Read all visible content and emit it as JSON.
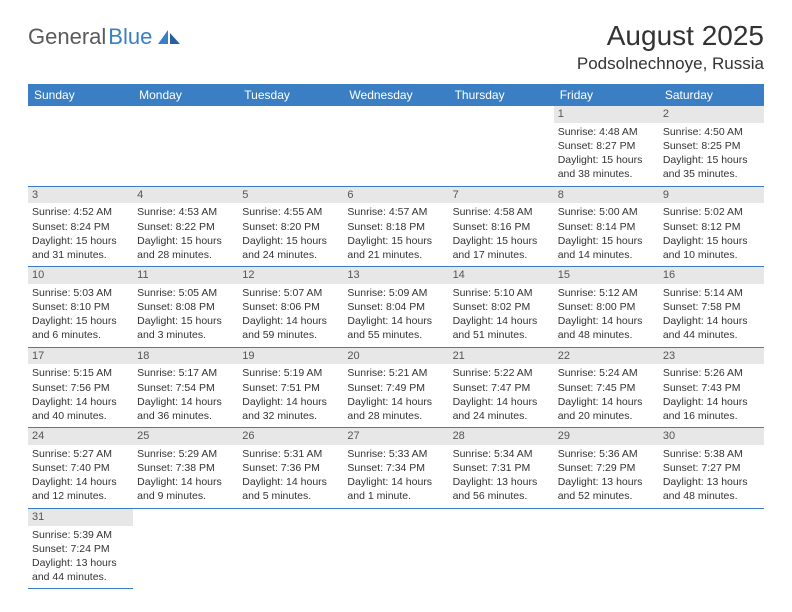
{
  "logo": {
    "general": "General",
    "blue": "Blue"
  },
  "title": "August 2025",
  "location": "Podsolnechnoye, Russia",
  "day_headers": [
    "Sunday",
    "Monday",
    "Tuesday",
    "Wednesday",
    "Thursday",
    "Friday",
    "Saturday"
  ],
  "colors": {
    "header_bg": "#3a7fc4",
    "header_text": "#ffffff",
    "daynum_bg": "#e7e7e7",
    "border": "#3a7fc4",
    "text": "#333333",
    "logo_gray": "#5a5a5a",
    "logo_blue": "#3a7fc4"
  },
  "weeks": [
    [
      null,
      null,
      null,
      null,
      null,
      {
        "n": "1",
        "sr": "Sunrise: 4:48 AM",
        "ss": "Sunset: 8:27 PM",
        "d1": "Daylight: 15 hours",
        "d2": "and 38 minutes."
      },
      {
        "n": "2",
        "sr": "Sunrise: 4:50 AM",
        "ss": "Sunset: 8:25 PM",
        "d1": "Daylight: 15 hours",
        "d2": "and 35 minutes."
      }
    ],
    [
      {
        "n": "3",
        "sr": "Sunrise: 4:52 AM",
        "ss": "Sunset: 8:24 PM",
        "d1": "Daylight: 15 hours",
        "d2": "and 31 minutes."
      },
      {
        "n": "4",
        "sr": "Sunrise: 4:53 AM",
        "ss": "Sunset: 8:22 PM",
        "d1": "Daylight: 15 hours",
        "d2": "and 28 minutes."
      },
      {
        "n": "5",
        "sr": "Sunrise: 4:55 AM",
        "ss": "Sunset: 8:20 PM",
        "d1": "Daylight: 15 hours",
        "d2": "and 24 minutes."
      },
      {
        "n": "6",
        "sr": "Sunrise: 4:57 AM",
        "ss": "Sunset: 8:18 PM",
        "d1": "Daylight: 15 hours",
        "d2": "and 21 minutes."
      },
      {
        "n": "7",
        "sr": "Sunrise: 4:58 AM",
        "ss": "Sunset: 8:16 PM",
        "d1": "Daylight: 15 hours",
        "d2": "and 17 minutes."
      },
      {
        "n": "8",
        "sr": "Sunrise: 5:00 AM",
        "ss": "Sunset: 8:14 PM",
        "d1": "Daylight: 15 hours",
        "d2": "and 14 minutes."
      },
      {
        "n": "9",
        "sr": "Sunrise: 5:02 AM",
        "ss": "Sunset: 8:12 PM",
        "d1": "Daylight: 15 hours",
        "d2": "and 10 minutes."
      }
    ],
    [
      {
        "n": "10",
        "sr": "Sunrise: 5:03 AM",
        "ss": "Sunset: 8:10 PM",
        "d1": "Daylight: 15 hours",
        "d2": "and 6 minutes."
      },
      {
        "n": "11",
        "sr": "Sunrise: 5:05 AM",
        "ss": "Sunset: 8:08 PM",
        "d1": "Daylight: 15 hours",
        "d2": "and 3 minutes."
      },
      {
        "n": "12",
        "sr": "Sunrise: 5:07 AM",
        "ss": "Sunset: 8:06 PM",
        "d1": "Daylight: 14 hours",
        "d2": "and 59 minutes."
      },
      {
        "n": "13",
        "sr": "Sunrise: 5:09 AM",
        "ss": "Sunset: 8:04 PM",
        "d1": "Daylight: 14 hours",
        "d2": "and 55 minutes."
      },
      {
        "n": "14",
        "sr": "Sunrise: 5:10 AM",
        "ss": "Sunset: 8:02 PM",
        "d1": "Daylight: 14 hours",
        "d2": "and 51 minutes."
      },
      {
        "n": "15",
        "sr": "Sunrise: 5:12 AM",
        "ss": "Sunset: 8:00 PM",
        "d1": "Daylight: 14 hours",
        "d2": "and 48 minutes."
      },
      {
        "n": "16",
        "sr": "Sunrise: 5:14 AM",
        "ss": "Sunset: 7:58 PM",
        "d1": "Daylight: 14 hours",
        "d2": "and 44 minutes."
      }
    ],
    [
      {
        "n": "17",
        "sr": "Sunrise: 5:15 AM",
        "ss": "Sunset: 7:56 PM",
        "d1": "Daylight: 14 hours",
        "d2": "and 40 minutes."
      },
      {
        "n": "18",
        "sr": "Sunrise: 5:17 AM",
        "ss": "Sunset: 7:54 PM",
        "d1": "Daylight: 14 hours",
        "d2": "and 36 minutes."
      },
      {
        "n": "19",
        "sr": "Sunrise: 5:19 AM",
        "ss": "Sunset: 7:51 PM",
        "d1": "Daylight: 14 hours",
        "d2": "and 32 minutes."
      },
      {
        "n": "20",
        "sr": "Sunrise: 5:21 AM",
        "ss": "Sunset: 7:49 PM",
        "d1": "Daylight: 14 hours",
        "d2": "and 28 minutes."
      },
      {
        "n": "21",
        "sr": "Sunrise: 5:22 AM",
        "ss": "Sunset: 7:47 PM",
        "d1": "Daylight: 14 hours",
        "d2": "and 24 minutes."
      },
      {
        "n": "22",
        "sr": "Sunrise: 5:24 AM",
        "ss": "Sunset: 7:45 PM",
        "d1": "Daylight: 14 hours",
        "d2": "and 20 minutes."
      },
      {
        "n": "23",
        "sr": "Sunrise: 5:26 AM",
        "ss": "Sunset: 7:43 PM",
        "d1": "Daylight: 14 hours",
        "d2": "and 16 minutes."
      }
    ],
    [
      {
        "n": "24",
        "sr": "Sunrise: 5:27 AM",
        "ss": "Sunset: 7:40 PM",
        "d1": "Daylight: 14 hours",
        "d2": "and 12 minutes."
      },
      {
        "n": "25",
        "sr": "Sunrise: 5:29 AM",
        "ss": "Sunset: 7:38 PM",
        "d1": "Daylight: 14 hours",
        "d2": "and 9 minutes."
      },
      {
        "n": "26",
        "sr": "Sunrise: 5:31 AM",
        "ss": "Sunset: 7:36 PM",
        "d1": "Daylight: 14 hours",
        "d2": "and 5 minutes."
      },
      {
        "n": "27",
        "sr": "Sunrise: 5:33 AM",
        "ss": "Sunset: 7:34 PM",
        "d1": "Daylight: 14 hours",
        "d2": "and 1 minute."
      },
      {
        "n": "28",
        "sr": "Sunrise: 5:34 AM",
        "ss": "Sunset: 7:31 PM",
        "d1": "Daylight: 13 hours",
        "d2": "and 56 minutes."
      },
      {
        "n": "29",
        "sr": "Sunrise: 5:36 AM",
        "ss": "Sunset: 7:29 PM",
        "d1": "Daylight: 13 hours",
        "d2": "and 52 minutes."
      },
      {
        "n": "30",
        "sr": "Sunrise: 5:38 AM",
        "ss": "Sunset: 7:27 PM",
        "d1": "Daylight: 13 hours",
        "d2": "and 48 minutes."
      }
    ],
    [
      {
        "n": "31",
        "sr": "Sunrise: 5:39 AM",
        "ss": "Sunset: 7:24 PM",
        "d1": "Daylight: 13 hours",
        "d2": "and 44 minutes."
      },
      null,
      null,
      null,
      null,
      null,
      null
    ]
  ]
}
